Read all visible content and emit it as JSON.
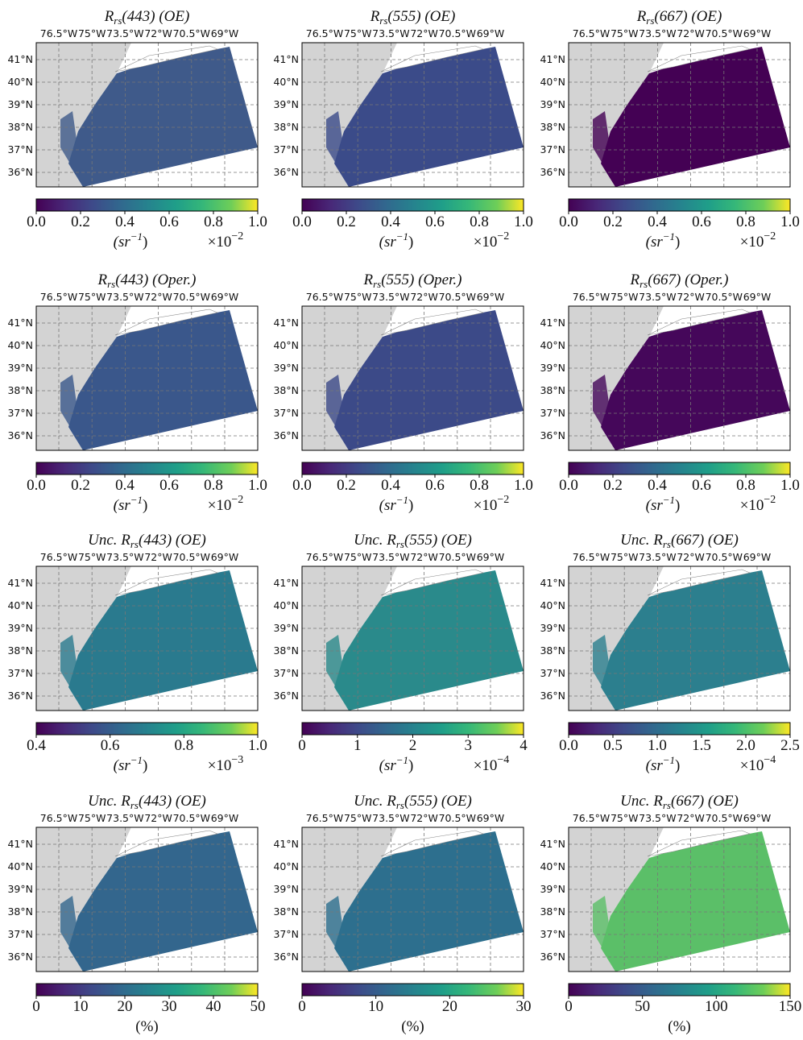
{
  "lon_labels": [
    "76.5°W",
    "75°W",
    "73.5°W",
    "72°W",
    "70.5°W",
    "69°W"
  ],
  "lat_labels": [
    "41°N",
    "40°N",
    "39°N",
    "38°N",
    "37°N",
    "36°N"
  ],
  "panels": [
    {
      "title": {
        "pre": "R",
        "sub": "rs",
        "post": "(443) (OE)"
      },
      "colorbar": {
        "lim": [
          0,
          1
        ],
        "ticks": [
          {
            "value": 0,
            "label": "0.0"
          },
          0.2,
          0.4,
          0.6,
          0.8,
          {
            "value": 1,
            "label": "1.0"
          }
        ],
        "units": {
          "pre": "(sr",
          "sup": "−1",
          "post": ")"
        },
        "multiplier": {
          "base": "×10",
          "sup": "−2"
        }
      }
    },
    {
      "title": {
        "pre": "R",
        "sub": "rs",
        "post": "(555) (OE)"
      },
      "colorbar": {
        "lim": [
          0,
          1
        ],
        "ticks": [
          {
            "value": 0,
            "label": "0.0"
          },
          0.2,
          0.4,
          0.6,
          0.8,
          {
            "value": 1,
            "label": "1.0"
          }
        ],
        "units": {
          "pre": "(sr",
          "sup": "−1",
          "post": ")"
        },
        "multiplier": {
          "base": "×10",
          "sup": "−2"
        }
      }
    },
    {
      "title": {
        "pre": "R",
        "sub": "rs",
        "post": "(667) (OE)"
      },
      "colorbar": {
        "lim": [
          0,
          1
        ],
        "ticks": [
          {
            "value": 0,
            "label": "0.0"
          },
          0.2,
          0.4,
          0.6,
          0.8,
          {
            "value": 1,
            "label": "1.0"
          }
        ],
        "units": {
          "pre": "(sr",
          "sup": "−1",
          "post": ")"
        },
        "multiplier": {
          "base": "×10",
          "sup": "−2"
        }
      }
    },
    {
      "title": {
        "pre": "R",
        "sub": "rs",
        "post": "(443) (Oper.)"
      },
      "colorbar": {
        "lim": [
          0,
          1
        ],
        "ticks": [
          {
            "value": 0,
            "label": "0.0"
          },
          0.2,
          0.4,
          0.6,
          0.8,
          {
            "value": 1,
            "label": "1.0"
          }
        ],
        "units": {
          "pre": "(sr",
          "sup": "−1",
          "post": ")"
        },
        "multiplier": {
          "base": "×10",
          "sup": "−2"
        }
      }
    },
    {
      "title": {
        "pre": "R",
        "sub": "rs",
        "post": "(555) (Oper.)"
      },
      "colorbar": {
        "lim": [
          0,
          1
        ],
        "ticks": [
          {
            "value": 0,
            "label": "0.0"
          },
          0.2,
          0.4,
          0.6,
          0.8,
          {
            "value": 1,
            "label": "1.0"
          }
        ],
        "units": {
          "pre": "(sr",
          "sup": "−1",
          "post": ")"
        },
        "multiplier": {
          "base": "×10",
          "sup": "−2"
        }
      }
    },
    {
      "title": {
        "pre": "R",
        "sub": "rs",
        "post": "(667) (Oper.)"
      },
      "colorbar": {
        "lim": [
          0,
          1
        ],
        "ticks": [
          {
            "value": 0,
            "label": "0.0"
          },
          0.2,
          0.4,
          0.6,
          0.8,
          {
            "value": 1,
            "label": "1.0"
          }
        ],
        "units": {
          "pre": "(sr",
          "sup": "−1",
          "post": ")"
        },
        "multiplier": {
          "base": "×10",
          "sup": "−2"
        }
      }
    },
    {
      "title": {
        "pre": "Unc. R",
        "sub": "rs",
        "post": "(443) (OE)"
      },
      "colorbar": {
        "lim": [
          0.4,
          1
        ],
        "ticks": [
          0.4,
          0.6,
          0.8,
          {
            "value": 1,
            "label": "1.0"
          }
        ],
        "units": {
          "pre": "(sr",
          "sup": "−1",
          "post": ")"
        },
        "multiplier": {
          "base": "×10",
          "sup": "−3"
        }
      }
    },
    {
      "title": {
        "pre": "Unc. R",
        "sub": "rs",
        "post": "(555) (OE)"
      },
      "colorbar": {
        "lim": [
          0,
          4
        ],
        "ticks": [
          0,
          1,
          2,
          3,
          4
        ],
        "units": {
          "pre": "(sr",
          "sup": "−1",
          "post": ")"
        },
        "multiplier": {
          "base": "×10",
          "sup": "−4"
        }
      }
    },
    {
      "title": {
        "pre": "Unc. R",
        "sub": "rs",
        "post": "(667) (OE)"
      },
      "colorbar": {
        "lim": [
          0,
          2.5
        ],
        "ticks": [
          {
            "value": 0,
            "label": "0.0"
          },
          0.5,
          {
            "value": 1,
            "label": "1.0"
          },
          1.5,
          {
            "value": 2,
            "label": "2.0"
          },
          2.5
        ],
        "units": {
          "pre": "(sr",
          "sup": "−1",
          "post": ")"
        },
        "multiplier": {
          "base": "×10",
          "sup": "−4"
        }
      }
    },
    {
      "title": {
        "pre": "Unc. R",
        "sub": "rs",
        "post": "(443) (OE)"
      },
      "colorbar": {
        "lim": [
          0,
          50
        ],
        "ticks": [
          0,
          10,
          20,
          30,
          40,
          50
        ],
        "units": {
          "pre": "(%)"
        }
      }
    },
    {
      "title": {
        "pre": "Unc. R",
        "sub": "rs",
        "post": "(555) (OE)"
      },
      "colorbar": {
        "lim": [
          0,
          30
        ],
        "ticks": [
          0,
          10,
          20,
          30
        ],
        "units": {
          "pre": "(%)"
        }
      }
    },
    {
      "title": {
        "pre": "Unc. R",
        "sub": "rs",
        "post": "(667) (OE)"
      },
      "colorbar": {
        "lim": [
          0,
          150
        ],
        "ticks": [
          0,
          50,
          100,
          150
        ],
        "units": {
          "pre": "(%)"
        }
      }
    }
  ]
}
